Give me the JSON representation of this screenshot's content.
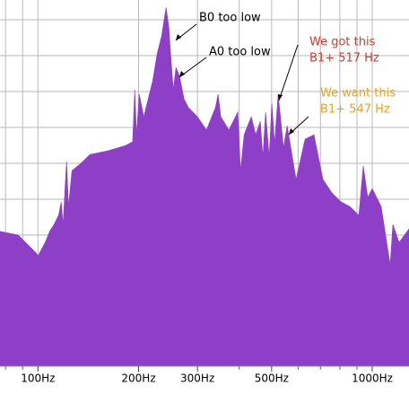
{
  "chart_data": {
    "type": "area",
    "log_x": true,
    "color": "#8e3fc8",
    "grid": true,
    "xlim": [
      77,
      1288
    ],
    "xticks": [
      {
        "value": 100,
        "label": "100Hz"
      },
      {
        "value": 200,
        "label": "200Hz"
      },
      {
        "value": 300,
        "label": "300Hz"
      },
      {
        "value": 500,
        "label": "500Hz"
      },
      {
        "value": 1000,
        "label": "1000Hz"
      }
    ],
    "xminor": [
      80,
      90,
      400,
      600,
      700,
      800,
      900
    ],
    "ylim": [
      0,
      100
    ],
    "ygrid": [
      6.4,
      16.2,
      26.0,
      35.8,
      45.6,
      55.4,
      65.2,
      75.0,
      84.8,
      94.6
    ],
    "x": [
      77,
      87.3,
      98.8,
      100,
      105.1,
      108.4,
      111.7,
      115.3,
      117.4,
      118.9,
      120.3,
      121.8,
      123.4,
      126.4,
      134.5,
      143.1,
      161.9,
      183.1,
      192,
      194.8,
      197.2,
      200.9,
      207.3,
      213.7,
      220.4,
      227.3,
      234.4,
      241.7,
      246.3,
      249.4,
      254.0,
      258.8,
      265.2,
      273.5,
      282.1,
      300.1,
      319.2,
      339.5,
      345.9,
      352.4,
      372.4,
      396.2,
      403.6,
      413.7,
      434.6,
      448.3,
      462.3,
      470.9,
      479.7,
      491.7,
      500.8,
      510.3,
      523.0,
      542.8,
      556.4,
      591.8,
      629.5,
      669.4,
      712.0,
      757.5,
      805.6,
      857.0,
      911.8,
      939.9,
      969.6,
      1000,
      1063.6,
      1131.3,
      1152.6,
      1203.3,
      1288
    ],
    "values": [
      36.8,
      35.8,
      30.9,
      30.1,
      33.8,
      36.8,
      38.7,
      41.2,
      44.9,
      38.7,
      47.3,
      55.9,
      43.6,
      53.4,
      55.4,
      57.8,
      58.8,
      60.3,
      61.3,
      75.5,
      63.2,
      74.3,
      68.1,
      73.0,
      77.9,
      85.3,
      90.2,
      98.0,
      92.6,
      85.3,
      75.5,
      81.6,
      79.2,
      73.0,
      70.6,
      68.1,
      64.5,
      70.6,
      74.3,
      68.1,
      64.5,
      69.4,
      53.4,
      63.2,
      68.1,
      63.2,
      66.9,
      57.1,
      69.4,
      57.1,
      71.8,
      60.8,
      74.3,
      59.6,
      65.7,
      51.0,
      62.0,
      63.2,
      51.0,
      47.3,
      44.9,
      43.6,
      41.2,
      54.7,
      46.1,
      48.5,
      43.6,
      27.7,
      38.7,
      33.8,
      37.5
    ],
    "annotations": [
      {
        "text": [
          "B0 too low"
        ],
        "color": "#000000"
      },
      {
        "text": [
          "A0 too low"
        ],
        "color": "#000000"
      },
      {
        "text": [
          "We got this",
          "B1+ 517 Hz"
        ],
        "color": "#e8321e"
      },
      {
        "text": [
          "We want this",
          "B1+ 547 Hz"
        ],
        "color": "#f0a020"
      }
    ]
  }
}
